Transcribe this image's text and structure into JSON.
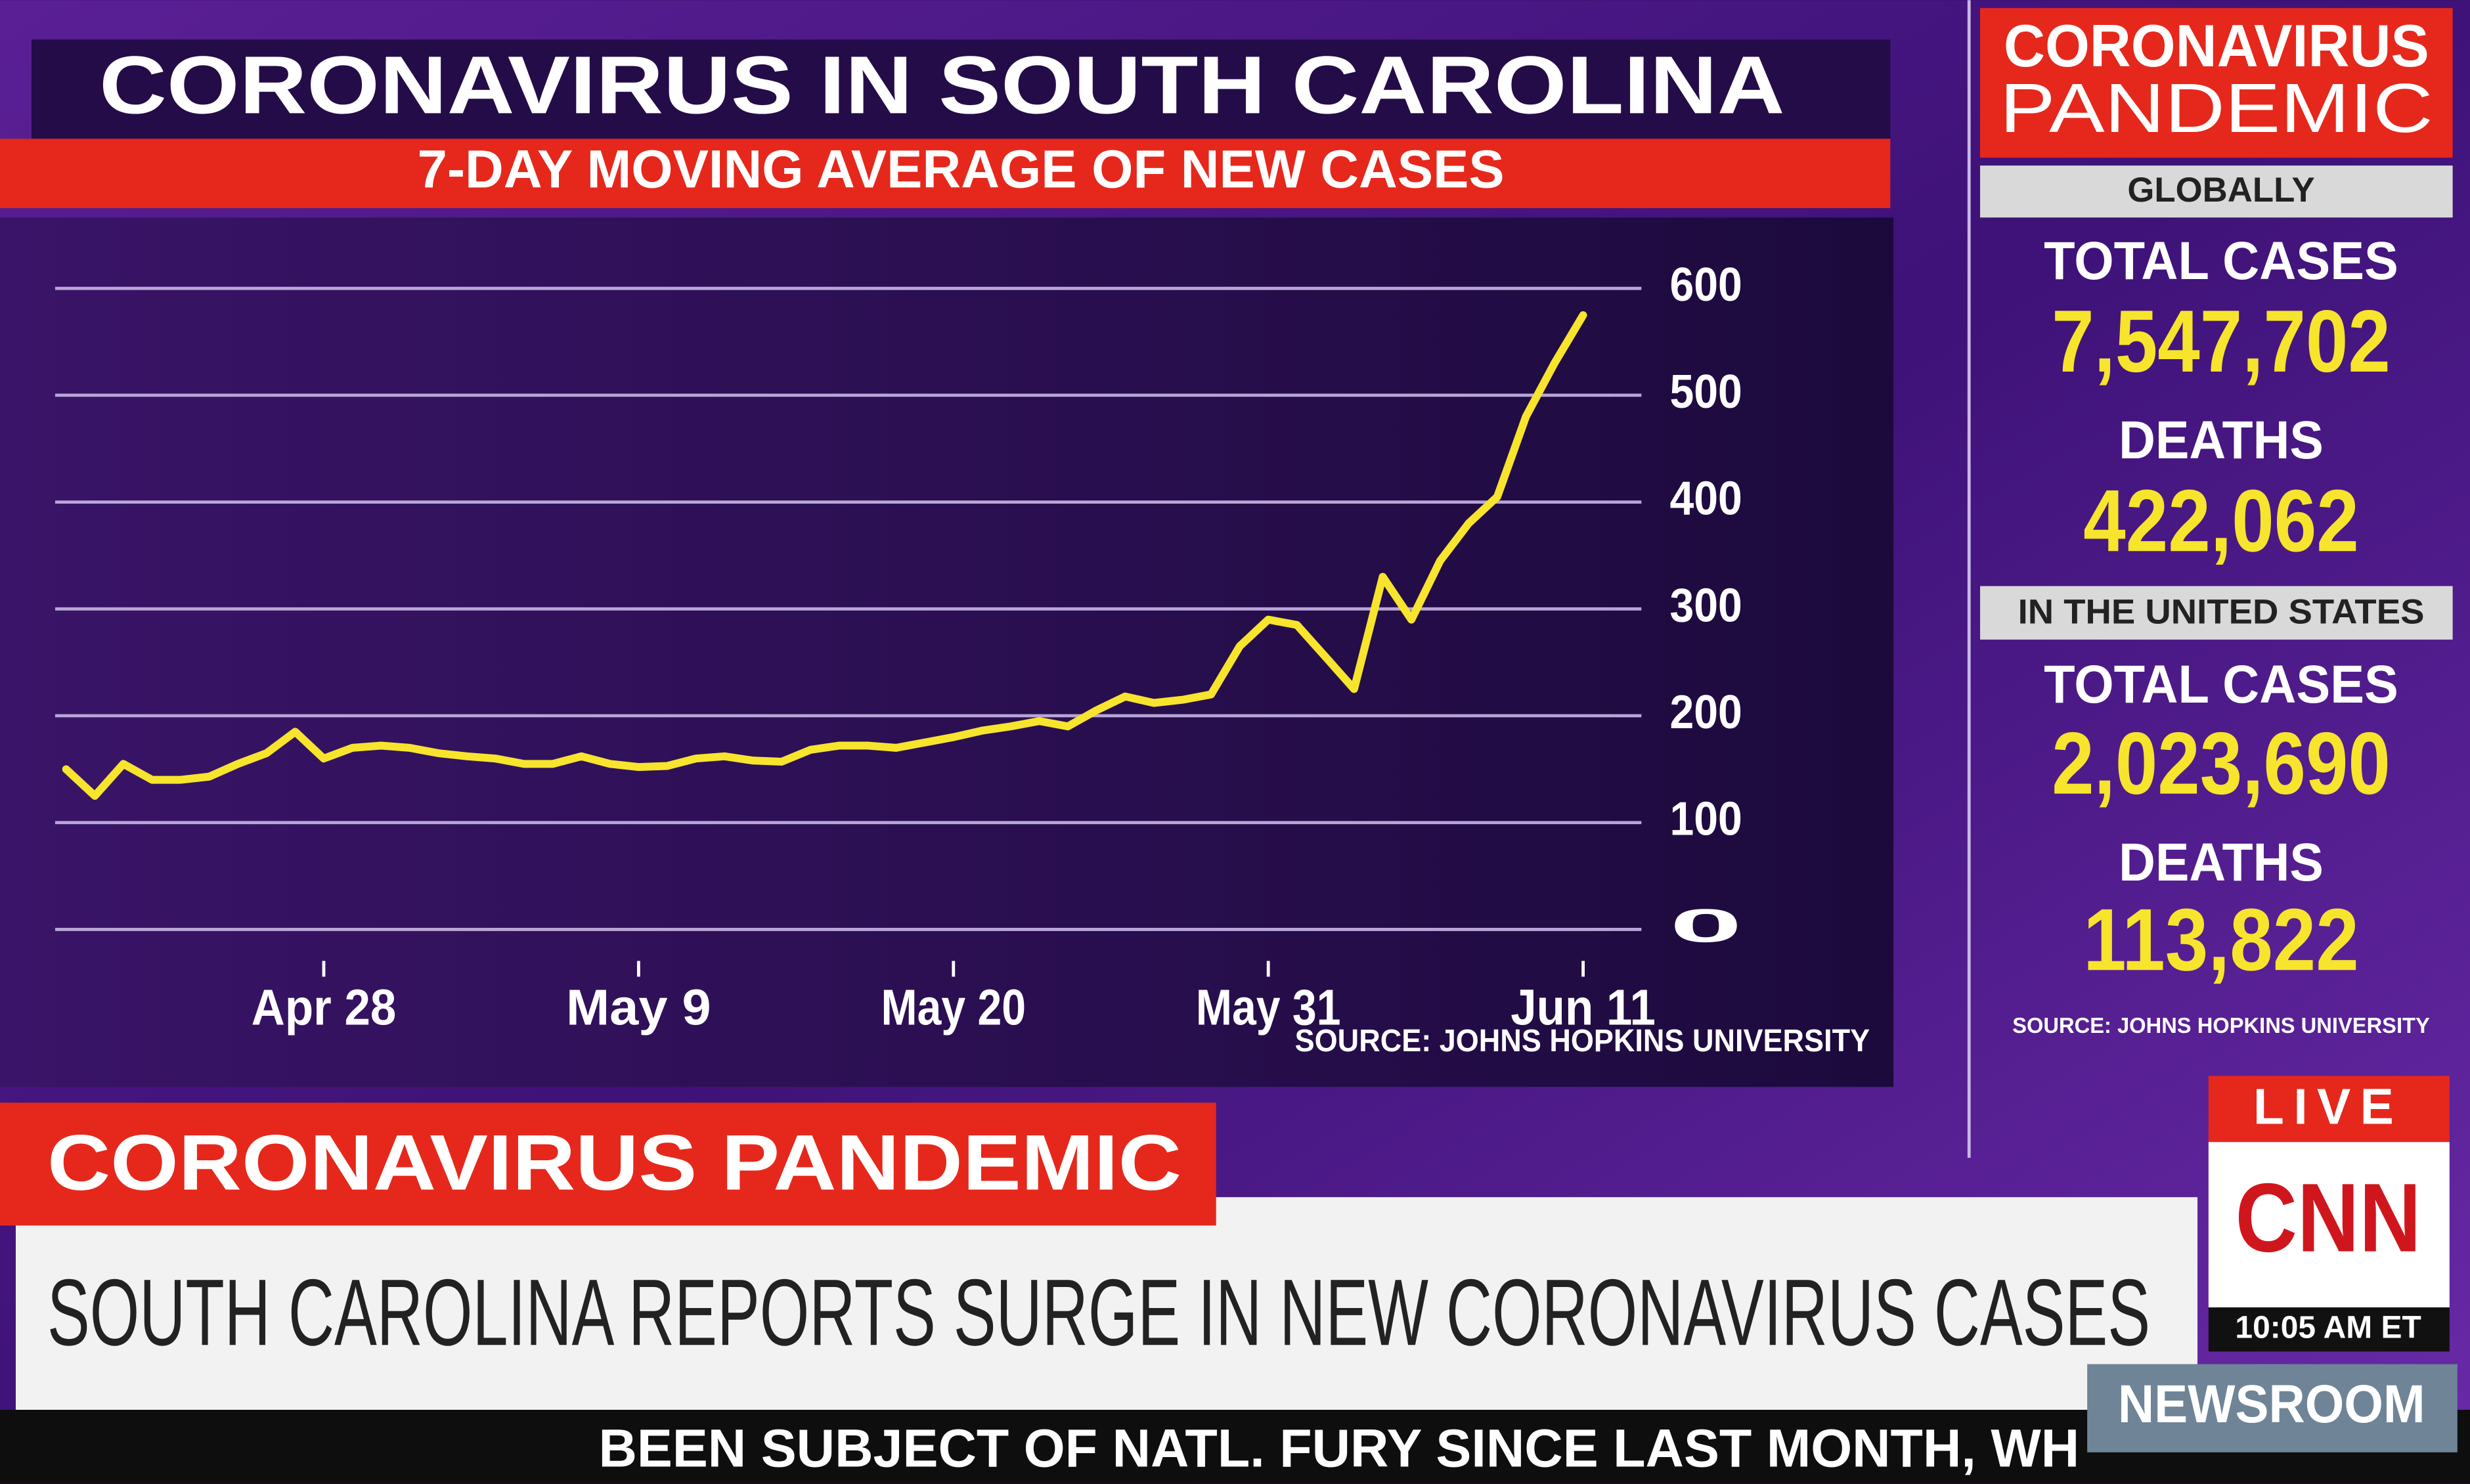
{
  "chart_data": {
    "type": "line",
    "title": "CORONAVIRUS IN SOUTH CAROLINA",
    "subtitle": "7-DAY MOVING AVERAGE OF NEW CASES",
    "source": "SOURCE: JOHNS HOPKINS UNIVERSITY",
    "categories": [
      null,
      null,
      null,
      null,
      null,
      null,
      null,
      null,
      null,
      "Apr 28",
      null,
      null,
      null,
      null,
      null,
      null,
      null,
      null,
      null,
      null,
      "May 9",
      null,
      null,
      null,
      null,
      null,
      null,
      null,
      null,
      null,
      null,
      "May 20",
      null,
      null,
      null,
      null,
      null,
      null,
      null,
      null,
      null,
      null,
      "May 31",
      null,
      null,
      null,
      null,
      null,
      null,
      null,
      null,
      null,
      null,
      "Jun 11"
    ],
    "values": [
      150,
      125,
      155,
      140,
      140,
      143,
      155,
      165,
      185,
      160,
      170,
      172,
      170,
      165,
      162,
      160,
      155,
      155,
      162,
      155,
      152,
      153,
      160,
      162,
      158,
      157,
      168,
      172,
      172,
      170,
      175,
      180,
      186,
      190,
      195,
      190,
      205,
      218,
      212,
      215,
      220,
      265,
      290,
      285,
      255,
      225,
      330,
      290,
      345,
      380,
      405,
      480,
      530,
      575
    ],
    "color": "#f7e42c",
    "ylim": [
      0,
      600
    ],
    "yticks": [
      0,
      100,
      200,
      300,
      400,
      500,
      600
    ],
    "grid": true
  },
  "sidebar": {
    "header": [
      "CORONAVIRUS",
      "PANDEMIC"
    ],
    "global": {
      "heading": "GLOBALLY",
      "cases_label": "TOTAL CASES",
      "cases": "7,547,702",
      "deaths_label": "DEATHS",
      "deaths": "422,062"
    },
    "us": {
      "heading": "IN THE UNITED STATES",
      "cases_label": "TOTAL CASES",
      "cases": "2,023,690",
      "deaths_label": "DEATHS",
      "deaths": "113,822"
    },
    "source": "SOURCE: JOHNS HOPKINS UNIVERSITY"
  },
  "lower_third": {
    "tag": "CORONAVIRUS PANDEMIC",
    "headline": "SOUTH CAROLINA REPORTS SURGE IN NEW CORONAVIRUS CASES",
    "live": "LIVE",
    "network": "CNN",
    "time": "10:05 AM ET",
    "show": "NEWSROOM",
    "ticker": "BEEN SUBJECT OF NATL. FURY SINCE LAST MONTH, WH"
  }
}
